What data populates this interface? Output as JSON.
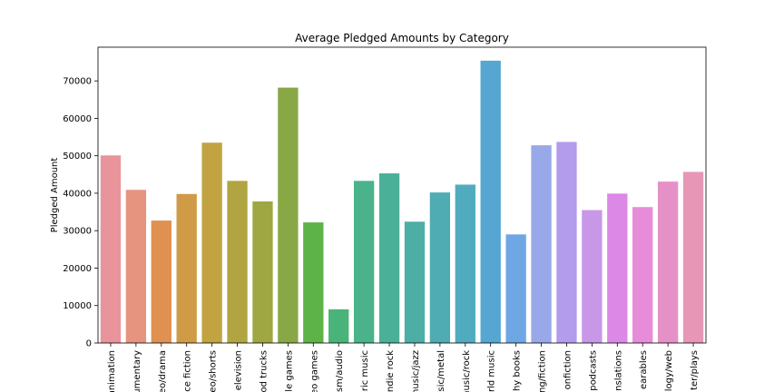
{
  "chart_data": {
    "type": "bar",
    "title": "Average Pledged Amounts by Category",
    "xlabel": "",
    "ylabel": "Pledged Amount",
    "ylim": [
      0,
      79000
    ],
    "yticks": [
      0,
      10000,
      20000,
      30000,
      40000,
      50000,
      60000,
      70000
    ],
    "grid": false,
    "legend": "none",
    "tick_labels_visible": [
      "animation",
      "umentary",
      "eo/drama",
      "ce fiction",
      "eo/shorts",
      "elevision",
      "od trucks",
      "le games",
      "eo games",
      "sm/audio",
      "ric music",
      "ndie rock",
      "nusic/jazz",
      "sic/metal",
      "music/rock",
      "rld music",
      "hy books",
      "ng/fiction",
      "onfiction",
      "podcasts",
      "nslations",
      "earables",
      "logy/web",
      "ter/plays"
    ],
    "values": [
      50100,
      40900,
      32700,
      39800,
      53500,
      43300,
      37800,
      68200,
      32200,
      9000,
      43300,
      45300,
      32400,
      40200,
      42300,
      75400,
      29000,
      52800,
      53700,
      35500,
      39900,
      36300,
      43100,
      45700
    ],
    "colors": [
      "#e8949a",
      "#e6937f",
      "#e09050",
      "#cf9b47",
      "#c2a342",
      "#b0a542",
      "#9ea742",
      "#88a846",
      "#5db347",
      "#49b37a",
      "#4ab38b",
      "#4bb098",
      "#4daea5",
      "#4facb2",
      "#50abbe",
      "#55a7d2",
      "#6ea7e3",
      "#99a8e8",
      "#b39ceb",
      "#c897e8",
      "#dc88e6",
      "#e68cd9",
      "#e591c8",
      "#e796b6"
    ]
  }
}
